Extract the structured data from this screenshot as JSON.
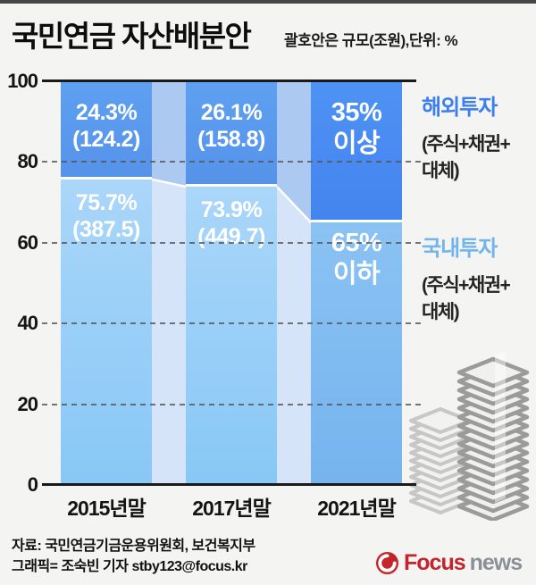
{
  "page": {
    "title": "국민연금 자산배분안",
    "subtitle": "괄호안은 규모(조원),단위: %"
  },
  "chart_data": {
    "type": "bar",
    "variant": "stacked-percent-with-flow-bands",
    "title": "국민연금 자산배분안",
    "note": "괄호안은 규모(조원),단위: %",
    "categories": [
      "2015년말",
      "2017년말",
      "2021년말"
    ],
    "series": [
      {
        "name": "해외투자",
        "description": "(주식+채권+대체)",
        "values": [
          24.3,
          26.1,
          35
        ],
        "amounts": [
          124.2,
          158.8,
          null
        ],
        "labels": [
          [
            "24.3%",
            "(124.2)"
          ],
          [
            "26.1%",
            "(158.8)"
          ],
          [
            "35%",
            "이상"
          ]
        ]
      },
      {
        "name": "국내투자",
        "description": "(주식+채권+대체)",
        "values": [
          75.7,
          73.9,
          65
        ],
        "amounts": [
          387.5,
          449.7,
          null
        ],
        "labels": [
          [
            "75.7%",
            "(387.5)"
          ],
          [
            "73.9%",
            "(449.7)"
          ],
          [
            "65%",
            "이하"
          ]
        ]
      }
    ],
    "yticks": [
      "100",
      "80",
      "60",
      "40",
      "20",
      "0"
    ],
    "ylim": [
      0,
      100
    ],
    "grid": "dashed-horizontal",
    "legend_position": "right"
  },
  "colors": {
    "overseas": [
      "#5fa0f1",
      "#5593e9"
    ],
    "overseas_2021": [
      "#4f92f4",
      "#4384ee"
    ],
    "domestic": [
      "#aad6f9",
      "#88c8f6"
    ],
    "domestic_2021": [
      "#8ac2f3",
      "#76b4ee"
    ],
    "connector_overseas": "#abc9f1",
    "connector_domestic": "#d5e4f9",
    "legend_overseas_text": "#3b7ef0",
    "legend_domestic_text": "#72b4ec",
    "logo_red": "#c4242b",
    "logo_grey": "#8a9095"
  },
  "legend": {
    "overseas": {
      "label": "해외투자",
      "sub_line1": "(주식+채권+",
      "sub_line2": "대체)"
    },
    "domestic": {
      "label": "국내투자",
      "sub_line1": "(주식+채권+",
      "sub_line2": "대체)"
    }
  },
  "footer": {
    "source": "자료: 국민연금기금운용위원회, 보건복지부",
    "credit": "그래픽= 조숙빈 기자 stby123@focus.kr",
    "logo": {
      "brand": "Focus",
      "suffix": "news"
    }
  }
}
